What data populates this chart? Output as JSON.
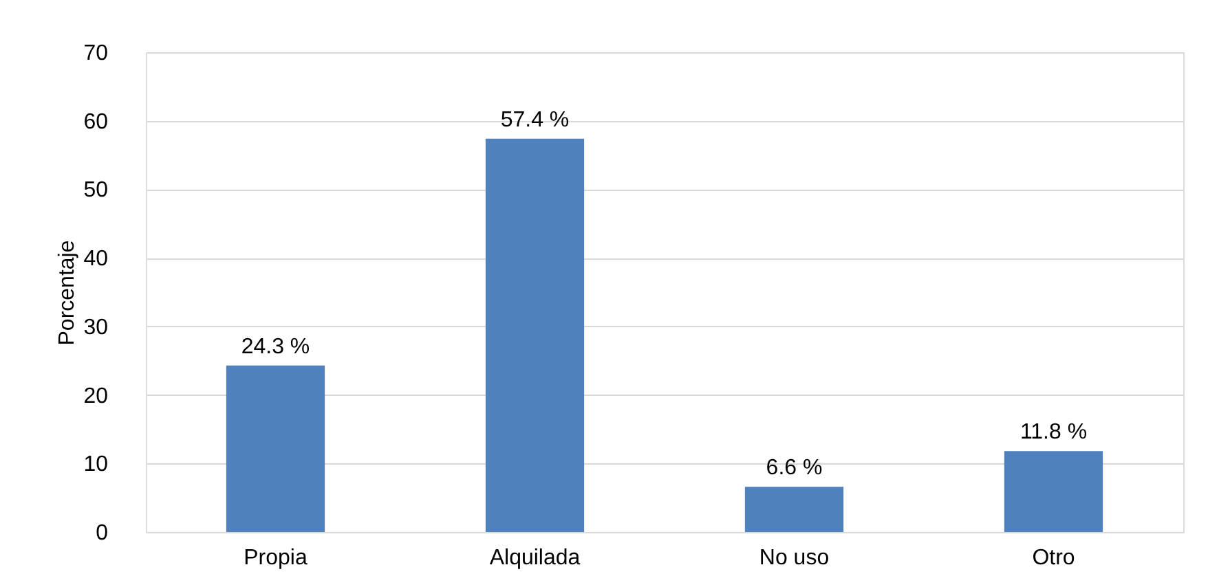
{
  "chart_data": {
    "type": "bar",
    "ylabel": "Porcentaje",
    "categories": [
      "Propia",
      "Alquilada",
      "No uso",
      "Otro"
    ],
    "values": [
      24.3,
      57.4,
      6.6,
      11.8
    ],
    "value_labels": [
      "24.3 %",
      "57.4 %",
      "6.6 %",
      "11.8 %"
    ],
    "color": "#4f81bd",
    "ylim": [
      0,
      70
    ],
    "yticks": [
      0,
      10,
      20,
      30,
      40,
      50,
      60,
      70
    ],
    "grid": "y"
  }
}
